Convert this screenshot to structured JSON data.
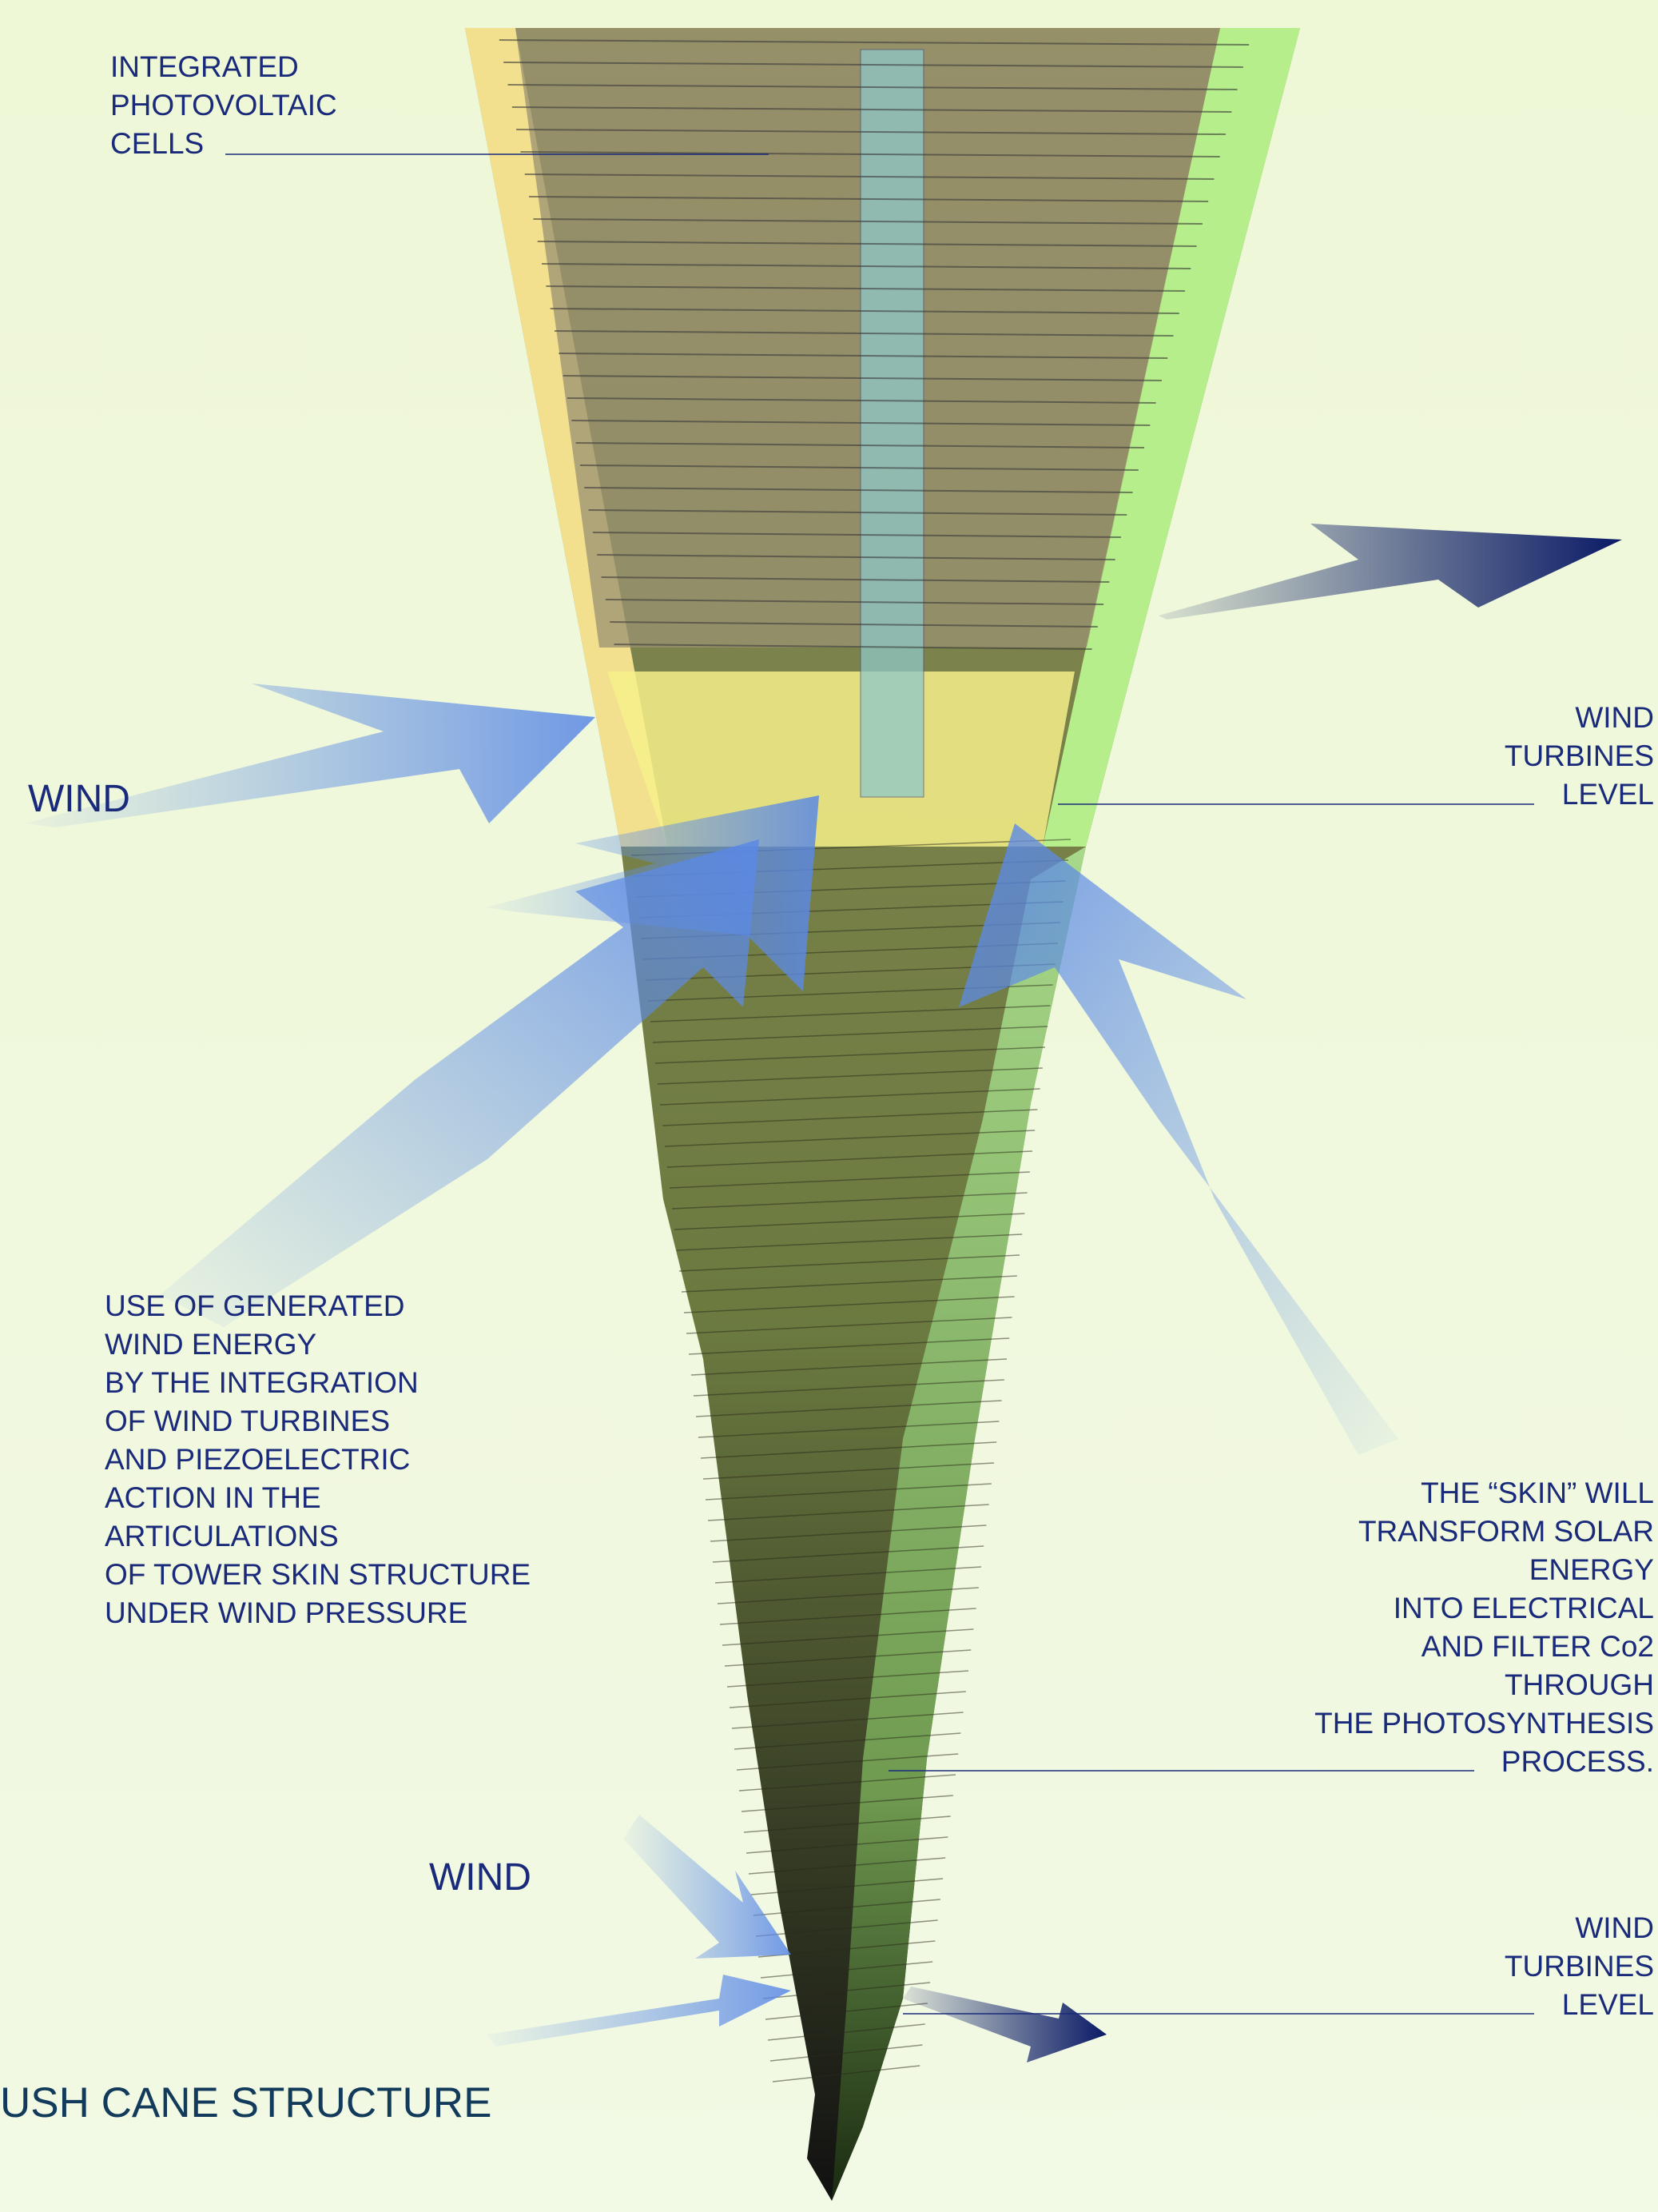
{
  "labels": {
    "photovoltaic": [
      "INTEGRATED",
      "PHOTOVOLTAIC",
      "CELLS"
    ],
    "wind_upper": "WIND",
    "turbines_upper": [
      "WIND",
      "TURBINES",
      "LEVEL"
    ],
    "wind_energy": [
      "USE OF GENERATED",
      "WIND ENERGY",
      "BY THE INTEGRATION",
      "OF WIND TURBINES",
      "AND PIEZOELECTRIC",
      "ACTION IN THE",
      "ARTICULATIONS",
      "OF TOWER SKIN STRUCTURE",
      "UNDER WIND PRESSURE"
    ],
    "skin": [
      "THE “SKIN” WILL",
      "TRANSFORM SOLAR",
      "ENERGY",
      "INTO ELECTRICAL",
      "AND FILTER Co2",
      "THROUGH",
      "THE PHOTOSYNTHESIS",
      "PROCESS."
    ],
    "wind_lower": "WIND",
    "turbines_lower": [
      "WIND",
      "TURBINES",
      "LEVEL"
    ],
    "cane": "USH CANE STRUCTURE"
  }
}
